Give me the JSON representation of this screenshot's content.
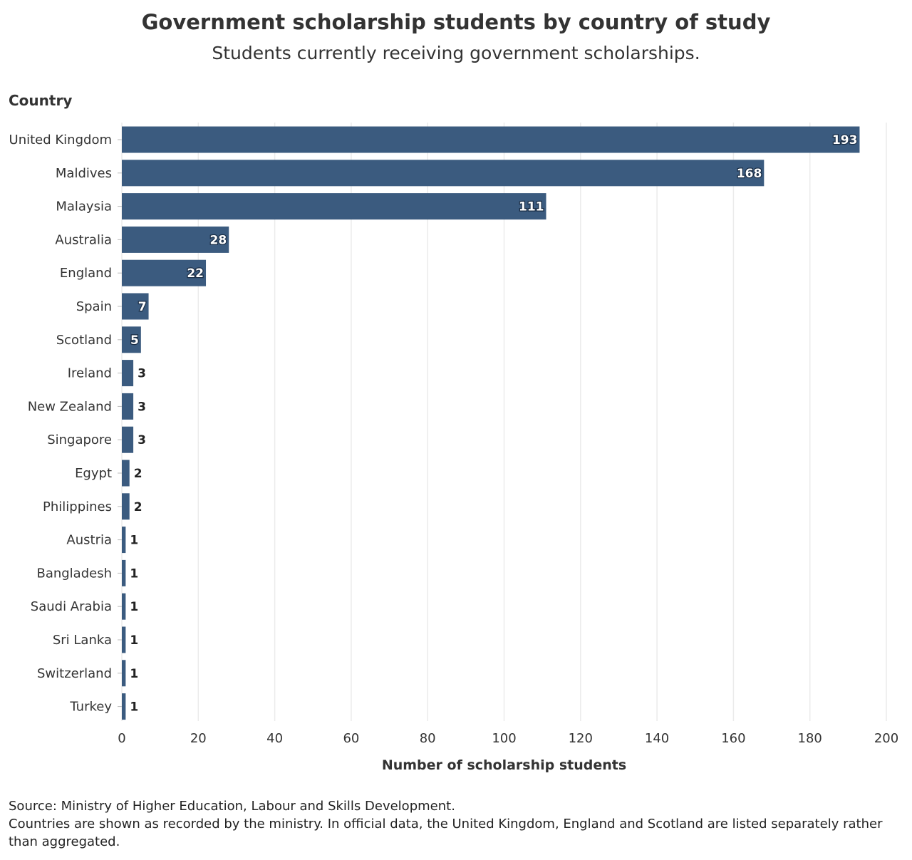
{
  "title": "Government scholarship students by country of study",
  "subtitle": "Students currently receiving government scholarships.",
  "colors": {
    "bar": "#3b5b7f",
    "grid": "#ebebeb",
    "label_inside": "#ffffff",
    "label_outside": "#222222"
  },
  "chart_data": {
    "type": "bar",
    "orientation": "horizontal",
    "title": "Government scholarship students by country of study",
    "subtitle": "Students currently receiving government scholarships.",
    "ylabel": "Country",
    "xlabel": "Number of scholarship students",
    "categories": [
      "United Kingdom",
      "Maldives",
      "Malaysia",
      "Australia",
      "England",
      "Spain",
      "Scotland",
      "Ireland",
      "New Zealand",
      "Singapore",
      "Egypt",
      "Philippines",
      "Austria",
      "Bangladesh",
      "Saudi Arabia",
      "Sri Lanka",
      "Switzerland",
      "Turkey"
    ],
    "values": [
      193,
      168,
      111,
      28,
      22,
      7,
      5,
      3,
      3,
      3,
      2,
      2,
      1,
      1,
      1,
      1,
      1,
      1
    ],
    "xlim": [
      0,
      200
    ],
    "xticks": [
      0,
      20,
      40,
      60,
      80,
      100,
      120,
      140,
      160,
      180,
      200
    ],
    "grid": "vertical"
  },
  "source": {
    "line1": "Source: Ministry of Higher Education, Labour and Skills Development.",
    "line2": "Countries are shown as recorded by the ministry. In official data, the United Kingdom, England and Scotland are listed separately rather than aggregated."
  }
}
